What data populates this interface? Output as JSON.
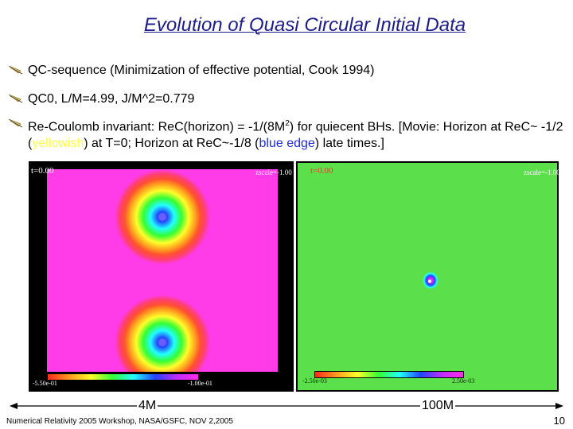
{
  "slide": {
    "title": "Evolution of Quasi Circular Initial Data",
    "bullets": {
      "b1": "QC-sequence (Minimization of effective potential, Cook 1994)",
      "b2": "QC0, L/M=4.99, J/M^2=0.779",
      "b3_part1": "Re-Coulomb invariant: ReC(horizon) = -1/(8M",
      "b3_sup": "2",
      "b3_part2": ") for quiecent BHs. [Movie: Horizon at ReC~ -1/2 (",
      "b3_yellow": "yellowish",
      "b3_part3": ") at T=0;  Horizon at ReC~-1/8 (",
      "b3_blue": "blue edge",
      "b3_part4": ") late times.]"
    },
    "panels": {
      "left": {
        "time": "t=0.00",
        "zscale": "zscale=-1.00",
        "cbar_min": "-5.50e-01",
        "cbar_max": "-1.00e-01",
        "caption": "4M"
      },
      "right": {
        "time": "t=0.00",
        "zscale": "zscale=-1.00",
        "cbar_min": "-2.50e-03",
        "cbar_max": "2.50e-03",
        "caption": "100M"
      }
    },
    "footer": "Numerical Relativity 2005 Workshop, NASA/GSFC, NOV 2,2005",
    "page_number": "10",
    "colors": {
      "title": "#1c1c8c",
      "yellowish": "#ffff40",
      "blue_edge": "#1e2bd6",
      "left_panel_background": "#ff3ce8",
      "right_panel_background": "#5bdf4a"
    }
  }
}
